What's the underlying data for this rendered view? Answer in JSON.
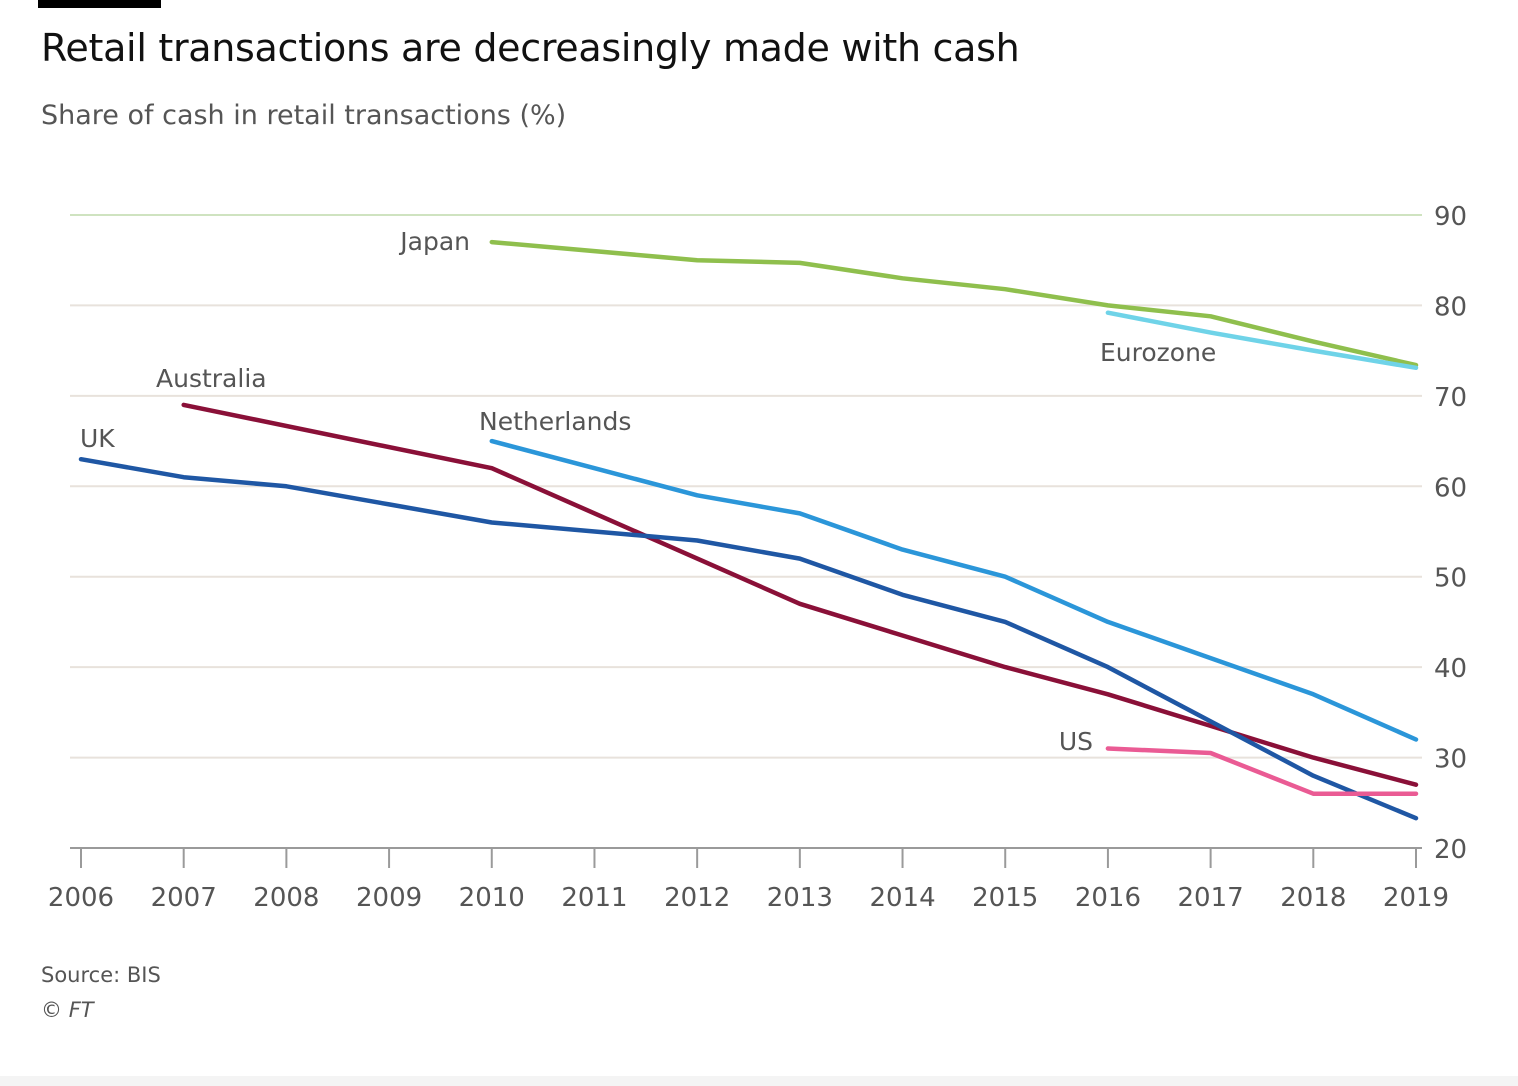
{
  "header": {
    "title": "Retail transactions are decreasingly made with cash",
    "subtitle": "Share of cash in retail transactions (%)"
  },
  "footer": {
    "source": "Source: BIS",
    "copyright_symbol": "©",
    "copyright_brand": "FT"
  },
  "chart_data": {
    "type": "line",
    "title": "Retail transactions are decreasingly made with cash",
    "subtitle": "Share of cash in retail transactions (%)",
    "xlabel": "",
    "ylabel": "",
    "x": [
      2006,
      2007,
      2008,
      2009,
      2010,
      2011,
      2012,
      2013,
      2014,
      2015,
      2016,
      2017,
      2018,
      2019
    ],
    "xlim": [
      2006,
      2019
    ],
    "ylim": [
      20,
      90
    ],
    "yticks": [
      20,
      30,
      40,
      50,
      60,
      70,
      80,
      90
    ],
    "y_axis_side": "right",
    "grid": true,
    "legend": "direct labels",
    "series": [
      {
        "name": "Japan",
        "color": "#8fbf4d",
        "x": [
          2010,
          2012,
          2013,
          2014,
          2015,
          2016,
          2017,
          2018,
          2019
        ],
        "values": [
          87,
          85,
          84.7,
          83,
          81.8,
          80,
          78.8,
          76,
          73.4
        ]
      },
      {
        "name": "Eurozone",
        "color": "#6fd3e8",
        "x": [
          2016,
          2017,
          2018,
          2019
        ],
        "values": [
          79.2,
          77,
          75,
          73.1
        ]
      },
      {
        "name": "Australia",
        "color": "#8a1038",
        "x": [
          2007,
          2010,
          2012,
          2013,
          2014,
          2015,
          2016,
          2017,
          2018,
          2019
        ],
        "values": [
          69,
          62,
          52,
          47,
          43.5,
          40,
          37,
          33.5,
          30,
          27
        ]
      },
      {
        "name": "UK",
        "color": "#1f57a4",
        "x": [
          2006,
          2007,
          2008,
          2009,
          2010,
          2011,
          2012,
          2013,
          2014,
          2015,
          2016,
          2017,
          2018,
          2019
        ],
        "values": [
          63,
          61,
          60,
          58,
          56,
          55,
          54,
          52,
          48,
          45,
          40,
          34,
          28,
          23.3
        ]
      },
      {
        "name": "Netherlands",
        "color": "#2b96d9",
        "x": [
          2010,
          2011,
          2012,
          2013,
          2014,
          2015,
          2016,
          2017,
          2018,
          2019
        ],
        "values": [
          65,
          62,
          59,
          57,
          53,
          50,
          45,
          41,
          37,
          32
        ]
      },
      {
        "name": "US",
        "color": "#ea5b94",
        "x": [
          2016,
          2017,
          2018,
          2019
        ],
        "values": [
          31,
          30.5,
          26,
          26
        ]
      }
    ]
  }
}
